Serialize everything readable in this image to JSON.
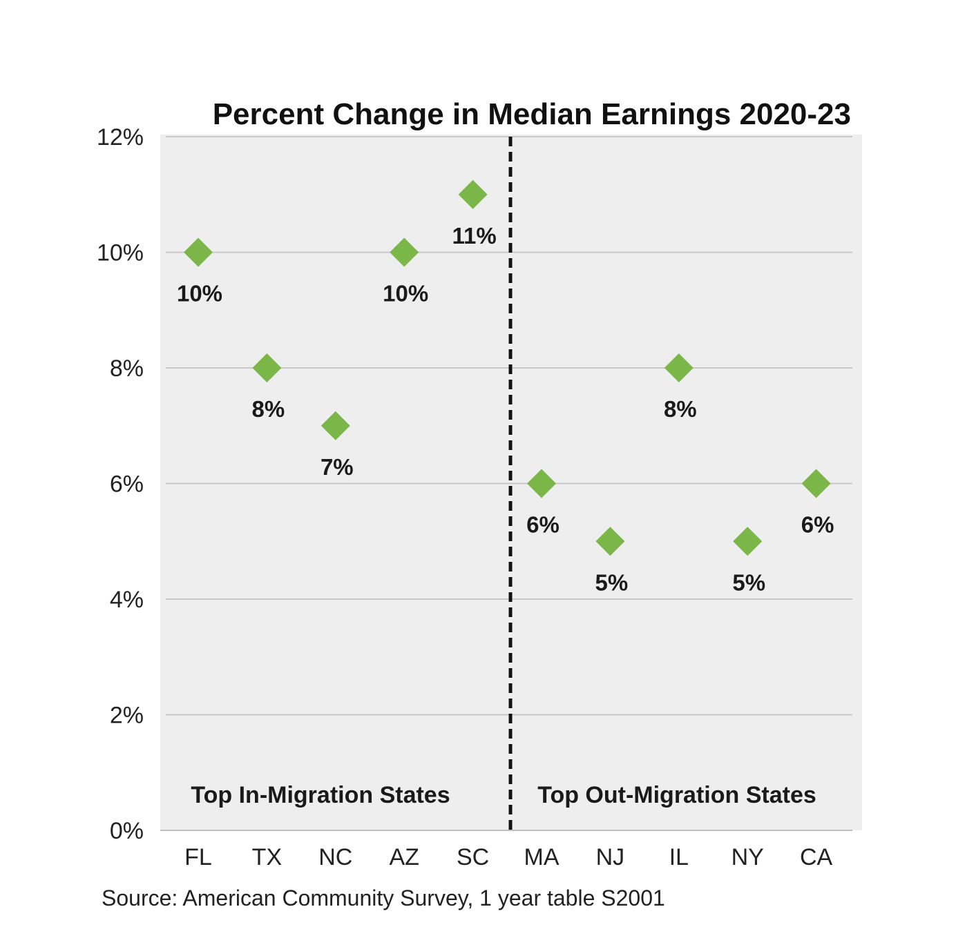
{
  "chart_data": {
    "type": "scatter",
    "title": "Percent Change in Median Earnings 2020-23",
    "xlabel": "",
    "ylabel": "",
    "categories": [
      "FL",
      "TX",
      "NC",
      "AZ",
      "SC",
      "MA",
      "NJ",
      "IL",
      "NY",
      "CA"
    ],
    "values": [
      10,
      8,
      7,
      10,
      11,
      6,
      5,
      8,
      5,
      6
    ],
    "data_labels": [
      "10%",
      "8%",
      "7%",
      "10%",
      "11%",
      "6%",
      "5%",
      "8%",
      "5%",
      "6%"
    ],
    "ylim": [
      0,
      12
    ],
    "yticks": [
      0,
      2,
      4,
      6,
      8,
      10,
      12
    ],
    "ytick_labels": [
      "0%",
      "2%",
      "4%",
      "6%",
      "8%",
      "10%",
      "12%"
    ],
    "grid": true,
    "groups": [
      {
        "label": "Top In-Migration States",
        "categories": [
          "FL",
          "TX",
          "NC",
          "AZ",
          "SC"
        ]
      },
      {
        "label": "Top Out-Migration States",
        "categories": [
          "MA",
          "NJ",
          "IL",
          "NY",
          "CA"
        ]
      }
    ],
    "source": "Source: American Community Survey, 1 year table S2001",
    "colors": {
      "marker": "#7ab648",
      "plot_bg": "#eeeeee",
      "grid": "#c8c8c8",
      "divider": "#111111"
    }
  }
}
